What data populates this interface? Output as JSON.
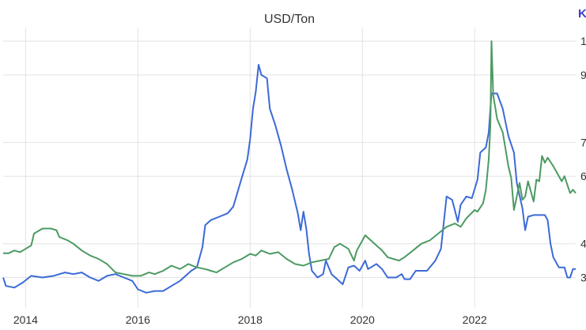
{
  "chart_data": {
    "type": "line",
    "title": "USD/Ton",
    "corner_label": "K",
    "colors": {
      "blue": "#3b6ad6",
      "green": "#4c9a62",
      "grid": "#e3e3e3",
      "corner": "#3b3bcc"
    },
    "x_ticks": [
      "2014",
      "2016",
      "2018",
      "2020",
      "2022"
    ],
    "y_ticks": [
      "1",
      "9",
      "7",
      "6",
      "4",
      "3"
    ],
    "xlim": [
      2013.6,
      2023.8
    ],
    "ylim": [
      2.1,
      10.4
    ],
    "grid": true,
    "legend": "none",
    "series": [
      {
        "color": "#3b6ad6",
        "points": [
          [
            2013.6,
            3.0
          ],
          [
            2013.65,
            2.75
          ],
          [
            2013.8,
            2.7
          ],
          [
            2013.95,
            2.85
          ],
          [
            2014.1,
            3.05
          ],
          [
            2014.3,
            3.0
          ],
          [
            2014.5,
            3.05
          ],
          [
            2014.7,
            3.15
          ],
          [
            2014.85,
            3.1
          ],
          [
            2015.0,
            3.15
          ],
          [
            2015.15,
            3.0
          ],
          [
            2015.3,
            2.9
          ],
          [
            2015.45,
            3.05
          ],
          [
            2015.6,
            3.1
          ],
          [
            2015.75,
            3.0
          ],
          [
            2015.9,
            2.9
          ],
          [
            2016.0,
            2.65
          ],
          [
            2016.15,
            2.55
          ],
          [
            2016.3,
            2.6
          ],
          [
            2016.45,
            2.6
          ],
          [
            2016.6,
            2.75
          ],
          [
            2016.75,
            2.9
          ],
          [
            2016.85,
            3.05
          ],
          [
            2016.95,
            3.2
          ],
          [
            2017.05,
            3.3
          ],
          [
            2017.15,
            3.9
          ],
          [
            2017.2,
            4.55
          ],
          [
            2017.3,
            4.7
          ],
          [
            2017.45,
            4.8
          ],
          [
            2017.6,
            4.9
          ],
          [
            2017.7,
            5.1
          ],
          [
            2017.85,
            5.95
          ],
          [
            2017.95,
            6.5
          ],
          [
            2018.0,
            7.1
          ],
          [
            2018.05,
            8.0
          ],
          [
            2018.1,
            8.5
          ],
          [
            2018.15,
            9.3
          ],
          [
            2018.2,
            9.0
          ],
          [
            2018.3,
            8.9
          ],
          [
            2018.35,
            8.0
          ],
          [
            2018.45,
            7.5
          ],
          [
            2018.55,
            6.9
          ],
          [
            2018.65,
            6.2
          ],
          [
            2018.75,
            5.6
          ],
          [
            2018.85,
            4.9
          ],
          [
            2018.9,
            4.4
          ],
          [
            2018.95,
            4.95
          ],
          [
            2019.0,
            4.45
          ],
          [
            2019.05,
            3.7
          ],
          [
            2019.1,
            3.2
          ],
          [
            2019.2,
            3.0
          ],
          [
            2019.3,
            3.1
          ],
          [
            2019.35,
            3.5
          ],
          [
            2019.45,
            3.1
          ],
          [
            2019.55,
            2.95
          ],
          [
            2019.65,
            2.8
          ],
          [
            2019.75,
            3.3
          ],
          [
            2019.85,
            3.35
          ],
          [
            2019.95,
            3.2
          ],
          [
            2020.05,
            3.5
          ],
          [
            2020.1,
            3.25
          ],
          [
            2020.25,
            3.4
          ],
          [
            2020.35,
            3.25
          ],
          [
            2020.45,
            3.0
          ],
          [
            2020.6,
            3.0
          ],
          [
            2020.7,
            3.1
          ],
          [
            2020.75,
            2.95
          ],
          [
            2020.85,
            2.95
          ],
          [
            2020.95,
            3.2
          ],
          [
            2021.05,
            3.2
          ],
          [
            2021.15,
            3.2
          ],
          [
            2021.3,
            3.5
          ],
          [
            2021.4,
            3.85
          ],
          [
            2021.5,
            5.4
          ],
          [
            2021.6,
            5.3
          ],
          [
            2021.7,
            4.65
          ],
          [
            2021.75,
            5.15
          ],
          [
            2021.85,
            5.4
          ],
          [
            2021.95,
            5.35
          ],
          [
            2022.05,
            5.9
          ],
          [
            2022.1,
            6.7
          ],
          [
            2022.2,
            6.85
          ],
          [
            2022.25,
            7.3
          ],
          [
            2022.3,
            8.45
          ],
          [
            2022.4,
            8.45
          ],
          [
            2022.5,
            8.0
          ],
          [
            2022.6,
            7.2
          ],
          [
            2022.7,
            6.7
          ],
          [
            2022.75,
            5.8
          ],
          [
            2022.85,
            5.05
          ],
          [
            2022.9,
            4.4
          ],
          [
            2022.95,
            4.8
          ],
          [
            2023.05,
            4.85
          ],
          [
            2023.15,
            4.85
          ],
          [
            2023.25,
            4.85
          ],
          [
            2023.3,
            4.7
          ],
          [
            2023.35,
            4.0
          ],
          [
            2023.4,
            3.6
          ],
          [
            2023.5,
            3.3
          ],
          [
            2023.6,
            3.3
          ],
          [
            2023.65,
            3.0
          ],
          [
            2023.7,
            3.0
          ],
          [
            2023.75,
            3.25
          ],
          [
            2023.8,
            3.25
          ]
        ]
      },
      {
        "color": "#4c9a62",
        "points": [
          [
            2013.6,
            3.72
          ],
          [
            2013.7,
            3.72
          ],
          [
            2013.8,
            3.8
          ],
          [
            2013.9,
            3.75
          ],
          [
            2014.0,
            3.85
          ],
          [
            2014.1,
            3.95
          ],
          [
            2014.15,
            4.3
          ],
          [
            2014.3,
            4.45
          ],
          [
            2014.45,
            4.45
          ],
          [
            2014.55,
            4.4
          ],
          [
            2014.6,
            4.2
          ],
          [
            2014.75,
            4.1
          ],
          [
            2014.85,
            4.0
          ],
          [
            2015.0,
            3.8
          ],
          [
            2015.15,
            3.65
          ],
          [
            2015.3,
            3.55
          ],
          [
            2015.45,
            3.4
          ],
          [
            2015.6,
            3.15
          ],
          [
            2015.75,
            3.1
          ],
          [
            2015.9,
            3.05
          ],
          [
            2016.05,
            3.05
          ],
          [
            2016.2,
            3.15
          ],
          [
            2016.3,
            3.1
          ],
          [
            2016.45,
            3.2
          ],
          [
            2016.6,
            3.35
          ],
          [
            2016.75,
            3.25
          ],
          [
            2016.9,
            3.4
          ],
          [
            2017.05,
            3.3
          ],
          [
            2017.2,
            3.25
          ],
          [
            2017.3,
            3.2
          ],
          [
            2017.4,
            3.15
          ],
          [
            2017.55,
            3.3
          ],
          [
            2017.7,
            3.45
          ],
          [
            2017.85,
            3.55
          ],
          [
            2018.0,
            3.7
          ],
          [
            2018.1,
            3.65
          ],
          [
            2018.2,
            3.8
          ],
          [
            2018.35,
            3.7
          ],
          [
            2018.5,
            3.75
          ],
          [
            2018.65,
            3.55
          ],
          [
            2018.8,
            3.4
          ],
          [
            2018.95,
            3.35
          ],
          [
            2019.1,
            3.45
          ],
          [
            2019.25,
            3.5
          ],
          [
            2019.4,
            3.55
          ],
          [
            2019.5,
            3.9
          ],
          [
            2019.6,
            4.0
          ],
          [
            2019.75,
            3.85
          ],
          [
            2019.85,
            3.5
          ],
          [
            2019.9,
            3.8
          ],
          [
            2020.0,
            4.1
          ],
          [
            2020.05,
            4.25
          ],
          [
            2020.15,
            4.1
          ],
          [
            2020.25,
            3.95
          ],
          [
            2020.35,
            3.8
          ],
          [
            2020.45,
            3.6
          ],
          [
            2020.55,
            3.55
          ],
          [
            2020.65,
            3.5
          ],
          [
            2020.75,
            3.6
          ],
          [
            2020.9,
            3.8
          ],
          [
            2021.05,
            4.0
          ],
          [
            2021.2,
            4.1
          ],
          [
            2021.35,
            4.3
          ],
          [
            2021.5,
            4.5
          ],
          [
            2021.65,
            4.6
          ],
          [
            2021.75,
            4.5
          ],
          [
            2021.85,
            4.75
          ],
          [
            2022.0,
            5.0
          ],
          [
            2022.05,
            4.95
          ],
          [
            2022.15,
            5.2
          ],
          [
            2022.2,
            5.6
          ],
          [
            2022.25,
            6.5
          ],
          [
            2022.28,
            7.5
          ],
          [
            2022.3,
            10.0
          ],
          [
            2022.33,
            8.4
          ],
          [
            2022.4,
            7.7
          ],
          [
            2022.5,
            7.3
          ],
          [
            2022.55,
            6.8
          ],
          [
            2022.6,
            6.3
          ],
          [
            2022.65,
            5.95
          ],
          [
            2022.7,
            5.0
          ],
          [
            2022.75,
            5.4
          ],
          [
            2022.8,
            5.8
          ],
          [
            2022.85,
            5.3
          ],
          [
            2022.9,
            5.4
          ],
          [
            2022.95,
            5.85
          ],
          [
            2023.05,
            5.25
          ],
          [
            2023.1,
            5.9
          ],
          [
            2023.15,
            5.85
          ],
          [
            2023.2,
            6.6
          ],
          [
            2023.25,
            6.4
          ],
          [
            2023.3,
            6.55
          ],
          [
            2023.4,
            6.3
          ],
          [
            2023.5,
            6.0
          ],
          [
            2023.55,
            5.85
          ],
          [
            2023.6,
            6.0
          ],
          [
            2023.7,
            5.5
          ],
          [
            2023.75,
            5.6
          ],
          [
            2023.8,
            5.5
          ]
        ]
      }
    ]
  }
}
